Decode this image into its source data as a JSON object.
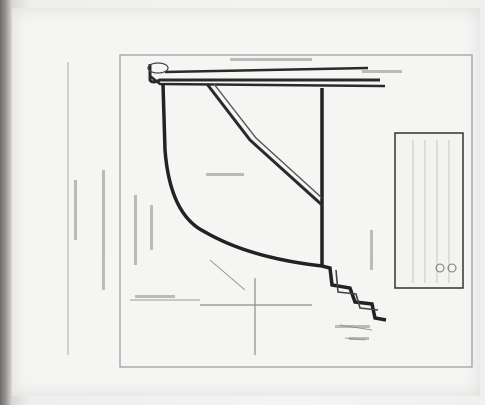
{
  "image": {
    "kind": "blurry photo of hand-drawn site plan sketch"
  },
  "labels": {
    "road_top": "",
    "road_right": "",
    "center_area": "",
    "margin_vertical": "",
    "margin_vertical_2": "",
    "left_notes": "",
    "bottom_left": "",
    "right_side": "",
    "bottom_right": ""
  },
  "legend": {
    "entries": [
      "",
      "",
      "",
      "",
      ""
    ]
  },
  "colors": {
    "ink": "#2a2a2a",
    "pencil": "#8c8c8c",
    "paper": "#f5f5f4"
  }
}
